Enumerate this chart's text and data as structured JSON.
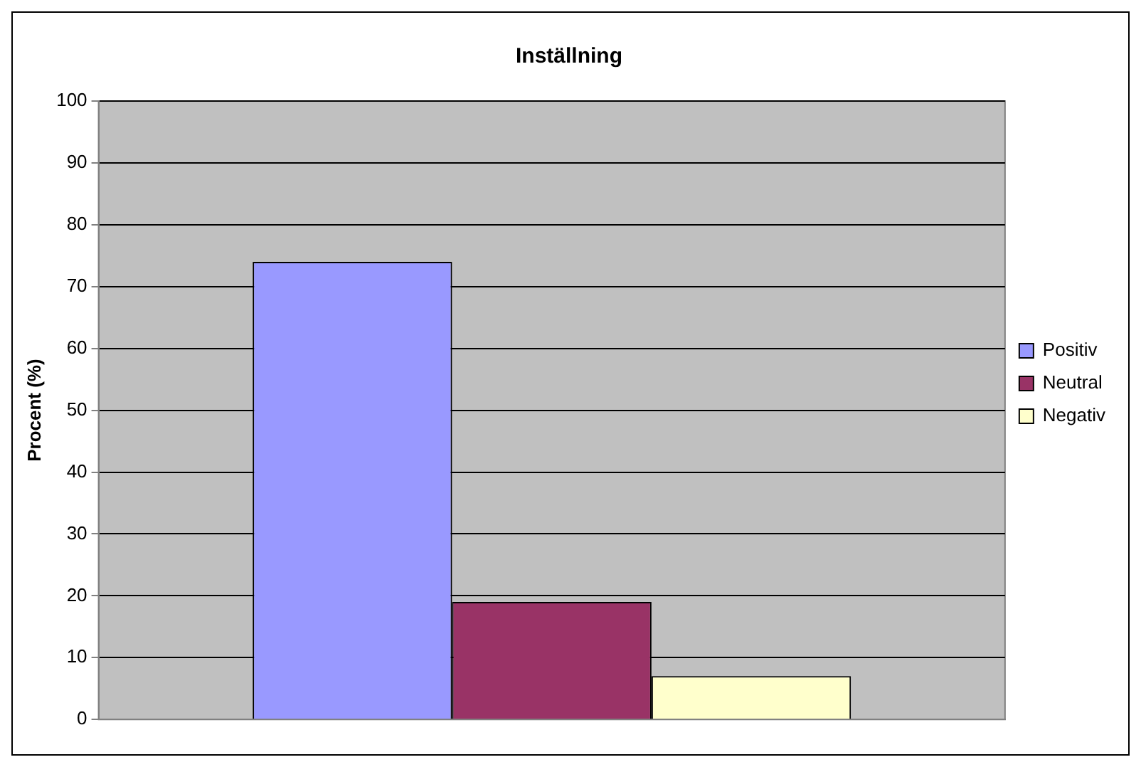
{
  "chart_data": {
    "type": "bar",
    "title": "Inställning",
    "ylabel": "Procent (%)",
    "categories": [
      null
    ],
    "series": [
      {
        "name": "Positiv",
        "color": "#9999ff",
        "values": [
          74
        ]
      },
      {
        "name": "Neutral",
        "color": "#993366",
        "values": [
          19
        ]
      },
      {
        "name": "Negativ",
        "color": "#ffffcc",
        "values": [
          7
        ]
      }
    ],
    "ylim": [
      0,
      100
    ],
    "yticks": [
      0,
      10,
      20,
      30,
      40,
      50,
      60,
      70,
      80,
      90,
      100
    ],
    "grid": "y",
    "legend": "right"
  }
}
